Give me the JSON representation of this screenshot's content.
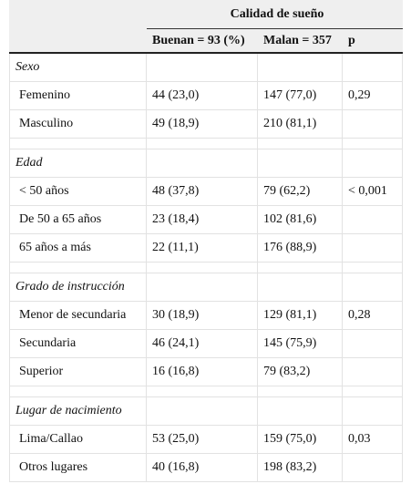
{
  "header": {
    "title": "Calidad de sueño",
    "columns": [
      "Buenan = 93 (%)",
      "Malan = 357",
      "p"
    ]
  },
  "sections": [
    {
      "title": "Sexo",
      "rows": [
        [
          "Femenino",
          "44 (23,0)",
          "147 (77,0)",
          "0,29"
        ],
        [
          "Masculino",
          "49 (18,9)",
          "210 (81,1)"
        ]
      ]
    },
    {
      "title": "Edad",
      "rows": [
        [
          "< 50 años",
          "48 (37,8)",
          "79 (62,2)",
          "< 0,001"
        ],
        [
          "De 50 a 65 años",
          "23 (18,4)",
          "102 (81,6)"
        ],
        [
          "65 años a más",
          "22 (11,1)",
          "176 (88,9)"
        ]
      ]
    },
    {
      "title": "Grado de instrucción",
      "rows": [
        [
          "Menor de secundaria",
          "30 (18,9)",
          "129 (81,1)",
          "0,28"
        ],
        [
          "Secundaria",
          "46 (24,1)",
          "145 (75,9)"
        ],
        [
          "Superior",
          "16 (16,8)",
          "79 (83,2)"
        ]
      ]
    },
    {
      "title": "Lugar de nacimiento",
      "rows": [
        [
          "Lima/Callao",
          "53 (25,0)",
          "159 (75,0)",
          "0,03"
        ],
        [
          "Otros lugares",
          "40 (16,8)",
          "198 (83,2)"
        ]
      ]
    }
  ]
}
